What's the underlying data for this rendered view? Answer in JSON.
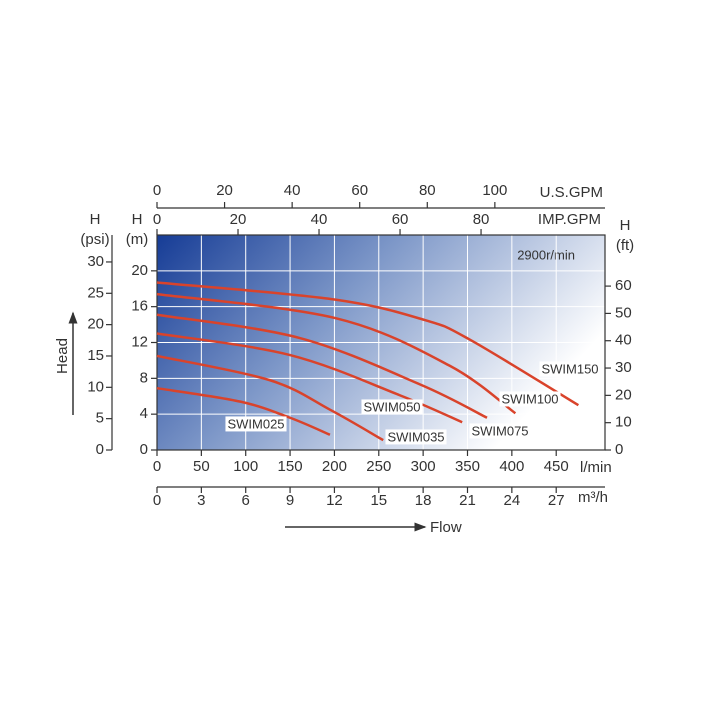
{
  "chart_data": {
    "type": "line",
    "annotation": "2900r/min",
    "x_label": "l/min",
    "y_label": [
      "H",
      "(m)"
    ],
    "xlim": [
      0,
      505
    ],
    "xticks": [
      0,
      50,
      100,
      150,
      200,
      250,
      300,
      350,
      400,
      450
    ],
    "ylim": [
      0,
      24
    ],
    "yticks": [
      0,
      4,
      8,
      12,
      16,
      20
    ],
    "grid": true,
    "series": [
      {
        "name": "SWIM150",
        "color": "#d9432b",
        "x": [
          0,
          200,
          302,
          353,
          475
        ],
        "values": [
          18.7,
          16.8,
          14.5,
          12.3,
          5.0
        ]
      },
      {
        "name": "SWIM100",
        "color": "#d9432b",
        "x": [
          0,
          202,
          330,
          404
        ],
        "values": [
          17.4,
          14.7,
          9.4,
          4.1
        ]
      },
      {
        "name": "SWIM075",
        "color": "#d9432b",
        "x": [
          0,
          161,
          297,
          372
        ],
        "values": [
          15.1,
          12.5,
          7.3,
          3.6
        ]
      },
      {
        "name": "SWIM050",
        "color": "#d9432b",
        "x": [
          0,
          150,
          274,
          344
        ],
        "values": [
          13.0,
          10.6,
          6.1,
          3.1
        ]
      },
      {
        "name": "SWIM035",
        "color": "#d9432b",
        "x": [
          0,
          127,
          195,
          255
        ],
        "values": [
          10.5,
          7.8,
          4.5,
          1.1
        ]
      },
      {
        "name": "SWIM025",
        "color": "#d9432b",
        "x": [
          0,
          94,
          150,
          195
        ],
        "values": [
          6.9,
          5.4,
          3.6,
          1.7
        ]
      }
    ],
    "y_psi": {
      "label": [
        "H",
        "(psi)"
      ],
      "lim": [
        0,
        34.3
      ],
      "ticks": [
        0,
        5,
        10,
        15,
        20,
        25,
        30
      ]
    },
    "y_ft": {
      "label": [
        "H",
        "(ft)"
      ],
      "lim": [
        0,
        78.7
      ],
      "ticks": [
        0,
        10,
        20,
        30,
        40,
        50,
        60
      ]
    },
    "x_usgpm": {
      "label": "U.S.GPM",
      "lim": [
        0,
        132.6
      ],
      "ticks": [
        0,
        20,
        40,
        60,
        80,
        100
      ]
    },
    "x_impgpm": {
      "label": "IMP.GPM",
      "lim": [
        0,
        110.6
      ],
      "ticks": [
        0,
        20,
        40,
        60,
        80
      ]
    },
    "x_m3h": {
      "label": "m³/h",
      "lim": [
        0,
        30.3
      ],
      "ticks": [
        0,
        3,
        6,
        9,
        12,
        15,
        18,
        21,
        24,
        27
      ]
    },
    "head_label": "Head",
    "flow_label": "Flow"
  }
}
